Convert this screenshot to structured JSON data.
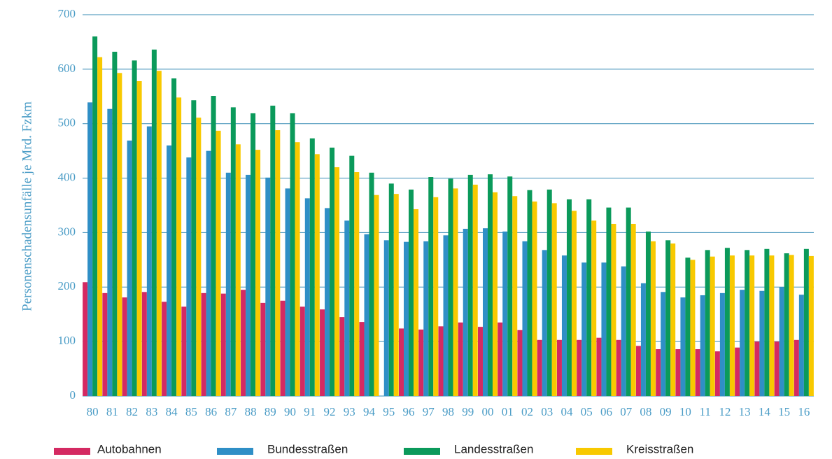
{
  "chart_data": {
    "type": "bar",
    "y_label": "Personenschadensunfälle je Mrd. Fzkm",
    "categories": [
      "80",
      "81",
      "82",
      "83",
      "84",
      "85",
      "86",
      "87",
      "88",
      "89",
      "90",
      "91",
      "92",
      "93",
      "94",
      "95",
      "96",
      "97",
      "98",
      "99",
      "00",
      "01",
      "02",
      "03",
      "04",
      "05",
      "06",
      "07",
      "08",
      "09",
      "10",
      "11",
      "12",
      "13",
      "14",
      "15",
      "16"
    ],
    "series": [
      {
        "name": "Autobahnen",
        "color": "#d42a62",
        "values": [
          209,
          189,
          181,
          191,
          173,
          164,
          189,
          188,
          195,
          171,
          175,
          164,
          159,
          145,
          136,
          null,
          124,
          122,
          128,
          135,
          127,
          135,
          121,
          103,
          103,
          103,
          107,
          103,
          92,
          86,
          86,
          86,
          82,
          89,
          100,
          100,
          103
        ]
      },
      {
        "name": "Bundesstraßen",
        "color": "#2f8fc6",
        "values": [
          539,
          527,
          469,
          495,
          460,
          438,
          450,
          410,
          406,
          401,
          381,
          363,
          345,
          322,
          297,
          286,
          283,
          284,
          295,
          307,
          308,
          302,
          284,
          268,
          258,
          245,
          245,
          238,
          207,
          191,
          181,
          185,
          189,
          195,
          193,
          200,
          186
        ]
      },
      {
        "name": "Landesstraßen",
        "color": "#0b9a5b",
        "values": [
          660,
          632,
          616,
          636,
          583,
          543,
          551,
          530,
          519,
          533,
          519,
          473,
          456,
          441,
          410,
          390,
          379,
          402,
          399,
          406,
          407,
          403,
          378,
          379,
          361,
          361,
          346,
          346,
          302,
          286,
          254,
          268,
          272,
          268,
          270,
          262,
          270
        ]
      },
      {
        "name": "Kreisstraßen",
        "color": "#f8c900",
        "values": [
          622,
          593,
          578,
          597,
          548,
          511,
          487,
          462,
          452,
          488,
          466,
          444,
          420,
          411,
          369,
          371,
          343,
          365,
          381,
          388,
          374,
          367,
          357,
          354,
          340,
          322,
          316,
          316,
          284,
          280,
          250,
          256,
          258,
          258,
          258,
          259,
          257
        ]
      }
    ],
    "ylim": [
      0,
      700
    ],
    "yticks": [
      0,
      100,
      200,
      300,
      400,
      500,
      600,
      700
    ],
    "grid": true
  }
}
